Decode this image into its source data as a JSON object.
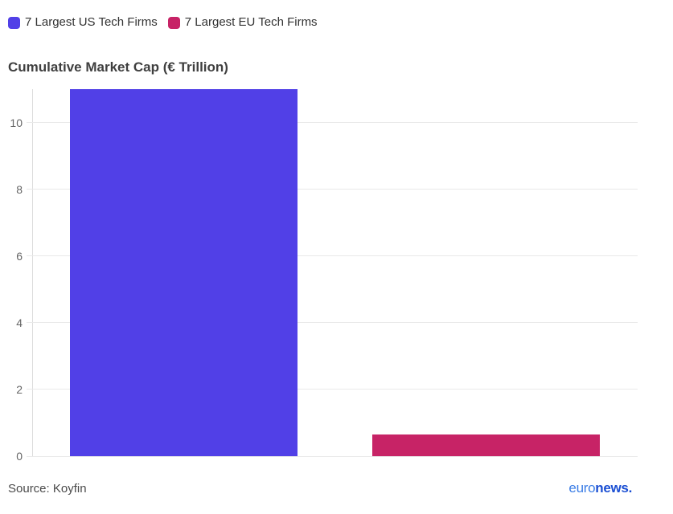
{
  "chart_data": {
    "type": "bar",
    "title": "Cumulative Market Cap (€ Trillion)",
    "series": [
      {
        "name": "7 Largest US Tech Firms",
        "value": 11.0,
        "color": "#5140e7",
        "slug": "us-tech-firms"
      },
      {
        "name": "7 Largest EU Tech Firms",
        "value": 0.66,
        "color": "#c72366",
        "slug": "eu-tech-firms"
      }
    ],
    "xlabel": "",
    "ylabel": "",
    "ylim": [
      0,
      11
    ],
    "yticks": [
      0,
      2,
      4,
      6,
      8,
      10
    ],
    "grid": true,
    "legend_position": "top-left"
  },
  "footer": {
    "source": "Source: Koyfin",
    "logo": {
      "part1": "euro",
      "part2": "news."
    }
  },
  "colors": {
    "us_bar": "#5140e7",
    "eu_bar": "#c72366",
    "gridline": "#e9e9e9",
    "axis_line": "#dcdcdc",
    "title_text": "#3f3f3f",
    "tick_text": "#666666",
    "legend_text": "#333333",
    "source_text": "#4a4a4a",
    "logo_euro": "#3e7fe6",
    "logo_news": "#1b4fd3"
  }
}
